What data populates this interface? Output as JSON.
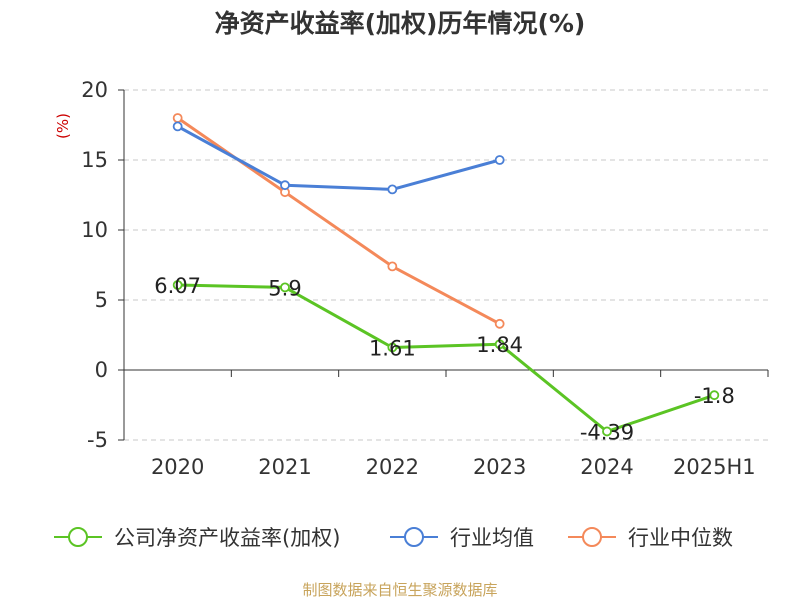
{
  "chart_data": {
    "type": "line",
    "title": "净资产收益率(加权)历年情况(%)",
    "unit_label": "(%)",
    "categories": [
      "2020",
      "2021",
      "2022",
      "2023",
      "2024",
      "2025H1"
    ],
    "ylim": [
      -5,
      20
    ],
    "yticks": [
      -5,
      0,
      5,
      10,
      15,
      20
    ],
    "grid": true,
    "legend_position": "bottom",
    "series": [
      {
        "name": "公司净资产收益率(加权)",
        "color": "#5bc424",
        "values": [
          6.07,
          5.9,
          1.61,
          1.84,
          -4.39,
          -1.8
        ],
        "labels": [
          "6.07",
          "5.9",
          "1.61",
          "1.84",
          "-4.39",
          "-1.8"
        ]
      },
      {
        "name": "行业均值",
        "color": "#4a7fd6",
        "values": [
          17.4,
          13.2,
          12.9,
          15.0,
          null,
          null
        ]
      },
      {
        "name": "行业中位数",
        "color": "#f4895a",
        "values": [
          18.0,
          12.7,
          7.4,
          3.3,
          null,
          null
        ]
      }
    ]
  },
  "colors": {
    "unit_label": "#cc0000",
    "source": "#c8a45c"
  },
  "source_text": "制图数据来自恒生聚源数据库"
}
